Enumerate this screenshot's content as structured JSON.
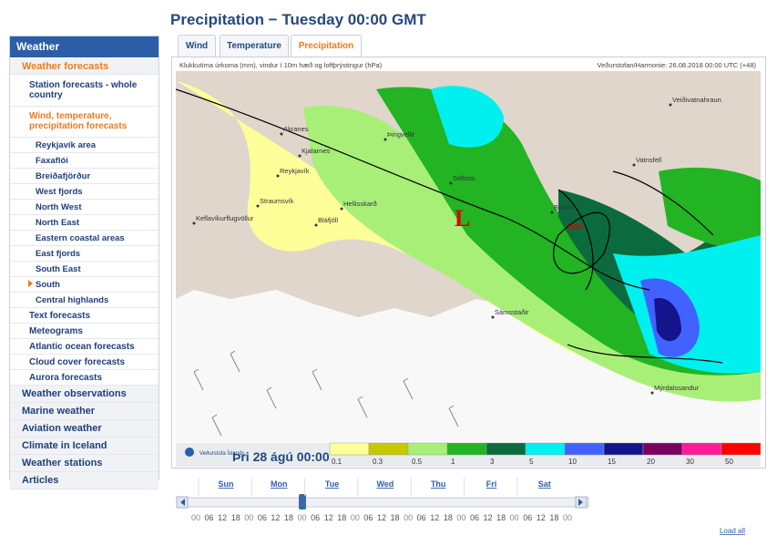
{
  "page_title": "Precipitation − Tuesday 00:00 GMT",
  "sidebar": {
    "title": "Weather",
    "forecasts": {
      "label": "Weather forecasts",
      "items": [
        {
          "label": "Station forecasts - whole country"
        },
        {
          "label": "Wind, temperature, precipitation forecasts",
          "regions": [
            "Reykjavík area",
            "Faxaflói",
            "Breiðafjörður",
            "West fjords",
            "North West",
            "North East",
            "Eastern coastal areas",
            "East fjords",
            "South East",
            "South",
            "Central highlands"
          ]
        },
        {
          "label": "Text forecasts"
        },
        {
          "label": "Meteograms"
        },
        {
          "label": "Atlantic ocean forecasts"
        },
        {
          "label": "Cloud cover forecasts"
        },
        {
          "label": "Aurora forecasts"
        }
      ]
    },
    "sections": [
      "Weather observations",
      "Marine weather",
      "Aviation weather",
      "Climate in Iceland",
      "Weather stations",
      "Articles"
    ]
  },
  "tabs": [
    "Wind",
    "Temperature",
    "Precipitation"
  ],
  "map": {
    "caption": "Klukkutíma úrkoma (mm), vindur í 10m hæð og loftþrýstingur (hPa)",
    "source": "Veðurstofan/Harmonie: 26.08.2018 00:00 UTC (+48)",
    "places": [
      "Akranes",
      "Kjalarnes",
      "Þingvellir",
      "Reykjavík",
      "Straumsvík",
      "Hellisskarð",
      "Keflavíkurflugvöllur",
      "Bláfjöll",
      "Selfoss",
      "Búrfell",
      "Sámsstaðir",
      "Veiðivatnahraun",
      "Vatnsfell",
      "Mýrdalssandur"
    ],
    "low": {
      "label": "L",
      "pressure": "989"
    },
    "logo": "Veðurstofa Íslands",
    "time": "Þri 28 ágú 00:00",
    "scale": [
      {
        "value": 0.1,
        "color": "#ffff99"
      },
      {
        "value": 0.3,
        "color": "#c8c800"
      },
      {
        "value": 0.5,
        "color": "#a8ef78"
      },
      {
        "value": 1,
        "color": "#22b422"
      },
      {
        "value": 3,
        "color": "#0b6b3f"
      },
      {
        "value": 5,
        "color": "#00f0f0"
      },
      {
        "value": 10,
        "color": "#4262ff"
      },
      {
        "value": 15,
        "color": "#14148c"
      },
      {
        "value": 20,
        "color": "#7a0060"
      },
      {
        "value": 30,
        "color": "#ff1c96"
      },
      {
        "value": 50,
        "color": "#ff0000"
      }
    ]
  },
  "timeline": {
    "days": [
      "Sun",
      "Mon",
      "Tue",
      "Wed",
      "Thu",
      "Fri",
      "Sat"
    ],
    "hours": [
      "00",
      "06",
      "12",
      "18",
      "00",
      "06",
      "12",
      "18",
      "00",
      "06",
      "12",
      "18",
      "00",
      "06",
      "12",
      "18",
      "00",
      "06",
      "12",
      "18",
      "00",
      "06",
      "12",
      "18",
      "00",
      "06",
      "12",
      "18",
      "00"
    ],
    "load_all": "Load all"
  }
}
